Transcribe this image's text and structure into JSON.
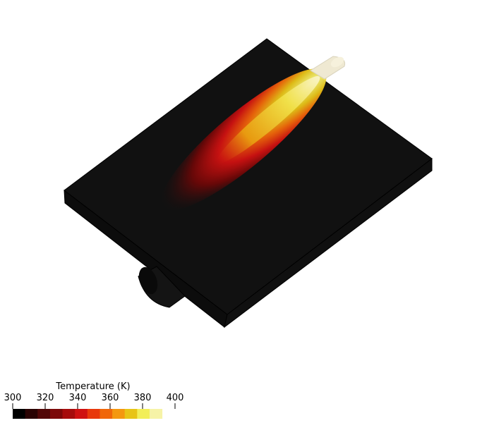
{
  "scene": {
    "background": "#ffffff",
    "solid_color": "#111111",
    "edge_color": "#000000"
  },
  "colorbar": {
    "title": "Temperature (K)",
    "range": [
      300,
      400
    ],
    "tick_values": [
      300,
      320,
      340,
      360,
      380,
      400
    ],
    "tick_labels": [
      "300",
      "320",
      "340",
      "360",
      "380",
      "400"
    ],
    "colors": [
      "#000000",
      "#2a0303",
      "#520707",
      "#7c0909",
      "#a60c0c",
      "#cf1111",
      "#e8380b",
      "#f0670a",
      "#f49810",
      "#e8c417",
      "#f2ee58",
      "#f6f3a7"
    ]
  }
}
